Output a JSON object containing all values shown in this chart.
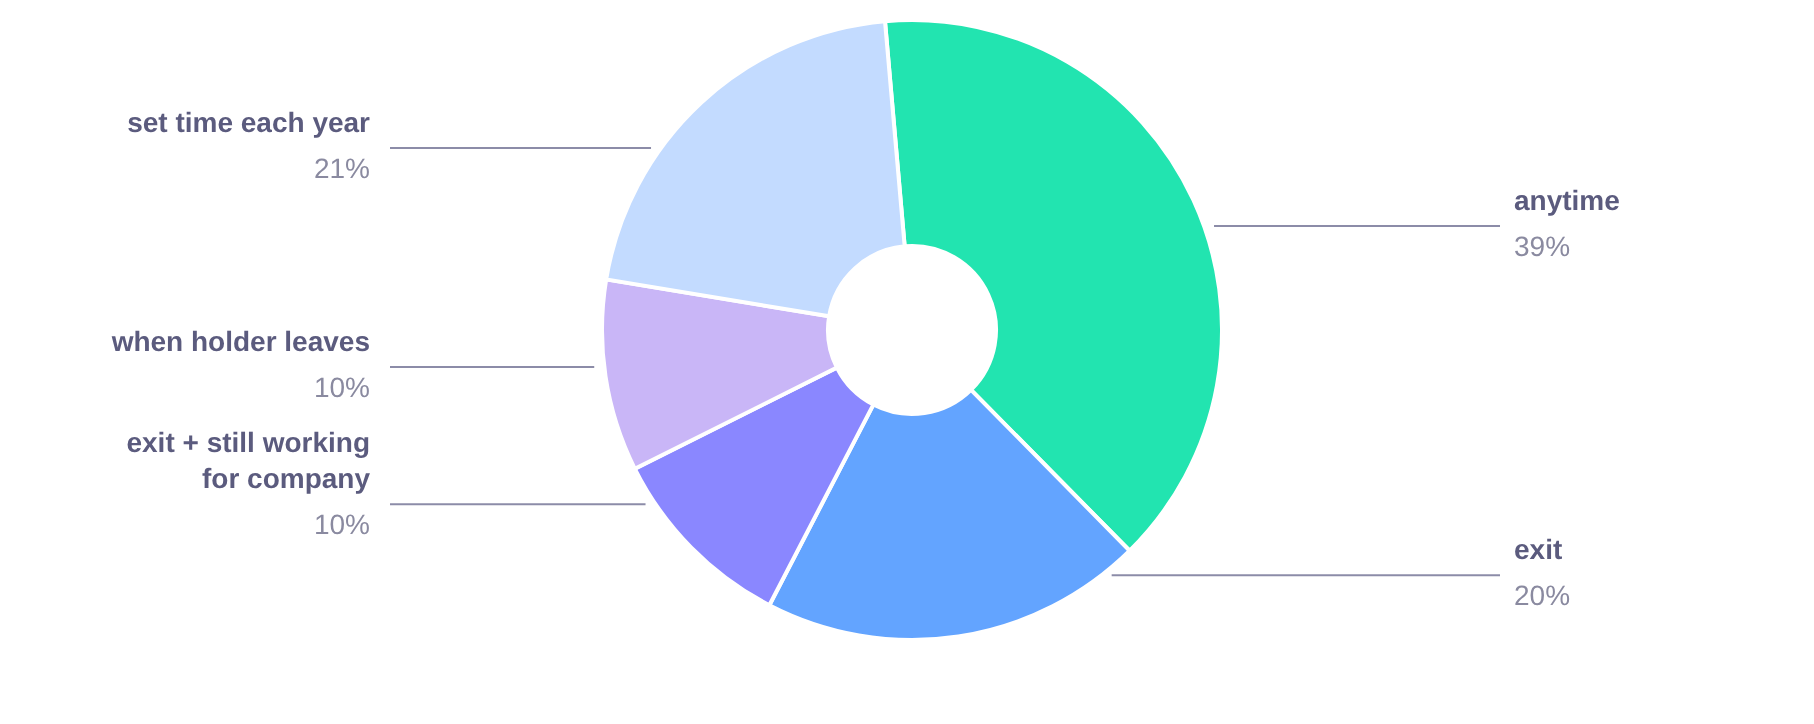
{
  "chart_data": {
    "type": "donut",
    "categories": [
      "anytime",
      "exit",
      "exit + still working for company",
      "when holder leaves",
      "set time each year"
    ],
    "values": [
      39,
      20,
      10,
      10,
      21
    ],
    "colors": [
      "#22e4b0",
      "#63a4ff",
      "#8a87ff",
      "#c9b6f7",
      "#c3dbff"
    ],
    "value_labels": [
      "39%",
      "20%",
      "10%",
      "10%",
      "21%"
    ]
  }
}
